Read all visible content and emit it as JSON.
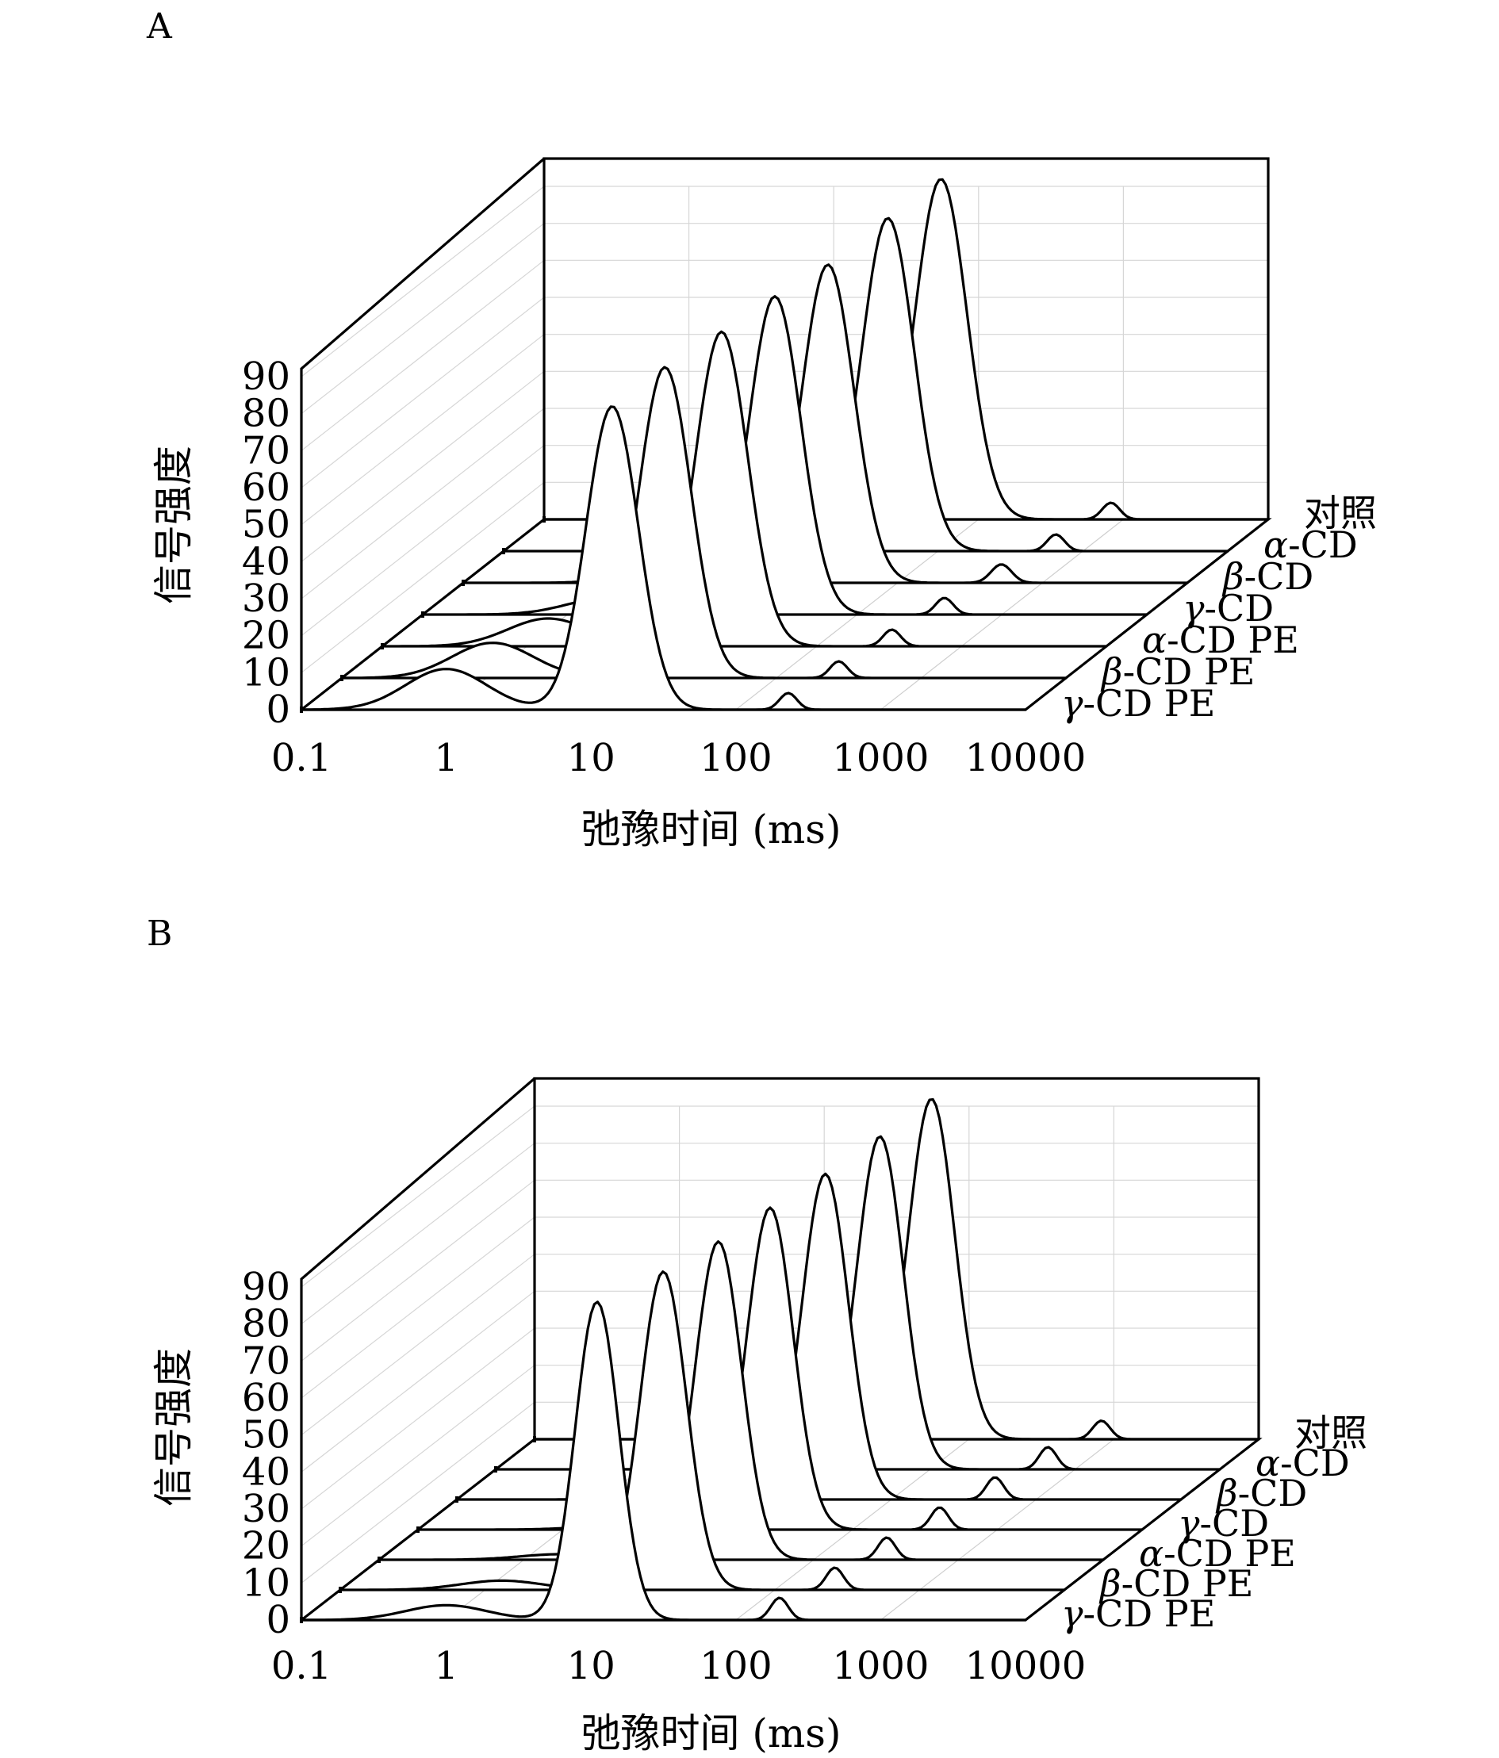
{
  "figure": {
    "panels": [
      {
        "label": "A",
        "chart_data": {
          "type": "line",
          "subtype": "3d-ridge",
          "title": "",
          "xlabel": "弛豫时间 (ms)",
          "ylabel": "信号强度",
          "xscale": "log",
          "xlim": [
            0.1,
            10000
          ],
          "ylim": [
            0,
            90
          ],
          "x_ticks": [
            "0.1",
            "1",
            "10",
            "100",
            "1000",
            "10000"
          ],
          "y_ticks": [
            "0",
            "10",
            "20",
            "30",
            "40",
            "50",
            "60",
            "70",
            "80",
            "90"
          ],
          "grid": true,
          "series": [
            {
              "name": "γ-CD PE",
              "greek": "γ",
              "rest": "-CD PE",
              "peaks": [
                {
                  "x": 1.0,
                  "y": 11,
                  "w": 0.28
                },
                {
                  "x": 14,
                  "y": 82,
                  "w": 0.18
                },
                {
                  "x": 230,
                  "y": 4.5,
                  "w": 0.06
                }
              ]
            },
            {
              "name": "β-CD PE",
              "greek": "β",
              "rest": "-CD PE",
              "peaks": [
                {
                  "x": 1.1,
                  "y": 9.5,
                  "w": 0.28
                },
                {
                  "x": 17,
                  "y": 84,
                  "w": 0.18
                },
                {
                  "x": 270,
                  "y": 4.5,
                  "w": 0.06
                }
              ]
            },
            {
              "name": "α-CD PE",
              "greek": "α",
              "rest": "-CD PE",
              "peaks": [
                {
                  "x": 1.4,
                  "y": 7.5,
                  "w": 0.28
                },
                {
                  "x": 22,
                  "y": 85,
                  "w": 0.18
                },
                {
                  "x": 330,
                  "y": 4.5,
                  "w": 0.06
                }
              ]
            },
            {
              "name": "γ-CD",
              "greek": "γ",
              "rest": "-CD",
              "peaks": [
                {
                  "x": 1.9,
                  "y": 4.5,
                  "w": 0.28
                },
                {
                  "x": 27,
                  "y": 86,
                  "w": 0.18
                },
                {
                  "x": 400,
                  "y": 4.5,
                  "w": 0.06
                }
              ]
            },
            {
              "name": "β-CD",
              "greek": "β",
              "rest": "-CD",
              "peaks": [
                {
                  "x": 2.4,
                  "y": 2.5,
                  "w": 0.28
                },
                {
                  "x": 33,
                  "y": 86,
                  "w": 0.18
                },
                {
                  "x": 520,
                  "y": 5,
                  "w": 0.07
                }
              ]
            },
            {
              "name": "α-CD",
              "greek": "α",
              "rest": "-CD",
              "peaks": [
                {
                  "x": 3.2,
                  "y": 1.5,
                  "w": 0.28
                },
                {
                  "x": 45,
                  "y": 90,
                  "w": 0.18
                },
                {
                  "x": 650,
                  "y": 4.5,
                  "w": 0.06
                }
              ]
            },
            {
              "name": "对照",
              "greek": "",
              "rest": "对照",
              "peaks": [
                {
                  "x": 4.0,
                  "y": 0.5,
                  "w": 0.28
                },
                {
                  "x": 55,
                  "y": 92,
                  "w": 0.18
                },
                {
                  "x": 820,
                  "y": 4.5,
                  "w": 0.06
                }
              ]
            }
          ]
        }
      },
      {
        "label": "B",
        "chart_data": {
          "type": "line",
          "subtype": "3d-ridge",
          "title": "",
          "xlabel": "弛豫时间 (ms)",
          "ylabel": "信号强度",
          "xscale": "log",
          "xlim": [
            0.1,
            10000
          ],
          "ylim": [
            0,
            90
          ],
          "x_ticks": [
            "0.1",
            "1",
            "10",
            "100",
            "1000",
            "10000"
          ],
          "y_ticks": [
            "0",
            "10",
            "20",
            "30",
            "40",
            "50",
            "60",
            "70",
            "80",
            "90"
          ],
          "grid": true,
          "series": [
            {
              "name": "γ-CD PE",
              "greek": "γ",
              "rest": "-CD PE",
              "peaks": [
                {
                  "x": 1.0,
                  "y": 4,
                  "w": 0.28
                },
                {
                  "x": 11,
                  "y": 86,
                  "w": 0.15
                },
                {
                  "x": 200,
                  "y": 6,
                  "w": 0.06
                }
              ]
            },
            {
              "name": "β-CD PE",
              "greek": "β",
              "rest": "-CD PE",
              "peaks": [
                {
                  "x": 1.3,
                  "y": 2.5,
                  "w": 0.28
                },
                {
                  "x": 17,
                  "y": 86,
                  "w": 0.16
                },
                {
                  "x": 260,
                  "y": 6,
                  "w": 0.06
                }
              ]
            },
            {
              "name": "α-CD PE",
              "greek": "α",
              "rest": "-CD PE",
              "peaks": [
                {
                  "x": 1.8,
                  "y": 1.5,
                  "w": 0.28
                },
                {
                  "x": 22,
                  "y": 86,
                  "w": 0.16
                },
                {
                  "x": 320,
                  "y": 6,
                  "w": 0.06
                }
              ]
            },
            {
              "name": "γ-CD",
              "greek": "γ",
              "rest": "-CD",
              "peaks": [
                {
                  "x": 2.4,
                  "y": 1.0,
                  "w": 0.28
                },
                {
                  "x": 27,
                  "y": 87,
                  "w": 0.16
                },
                {
                  "x": 400,
                  "y": 6,
                  "w": 0.06
                }
              ]
            },
            {
              "name": "β-CD",
              "greek": "β",
              "rest": "-CD",
              "peaks": [
                {
                  "x": 3.0,
                  "y": 0.5,
                  "w": 0.28
                },
                {
                  "x": 35,
                  "y": 88,
                  "w": 0.16
                },
                {
                  "x": 520,
                  "y": 6,
                  "w": 0.06
                }
              ]
            },
            {
              "name": "α-CD",
              "greek": "α",
              "rest": "-CD",
              "peaks": [
                {
                  "x": 3.6,
                  "y": 0.3,
                  "w": 0.28
                },
                {
                  "x": 45,
                  "y": 90,
                  "w": 0.16
                },
                {
                  "x": 650,
                  "y": 6,
                  "w": 0.06
                }
              ]
            },
            {
              "name": "对照",
              "greek": "",
              "rest": "对照",
              "peaks": [
                {
                  "x": 4.2,
                  "y": 0.2,
                  "w": 0.28
                },
                {
                  "x": 55,
                  "y": 92,
                  "w": 0.16
                },
                {
                  "x": 820,
                  "y": 5,
                  "w": 0.06
                }
              ]
            }
          ]
        }
      }
    ]
  }
}
